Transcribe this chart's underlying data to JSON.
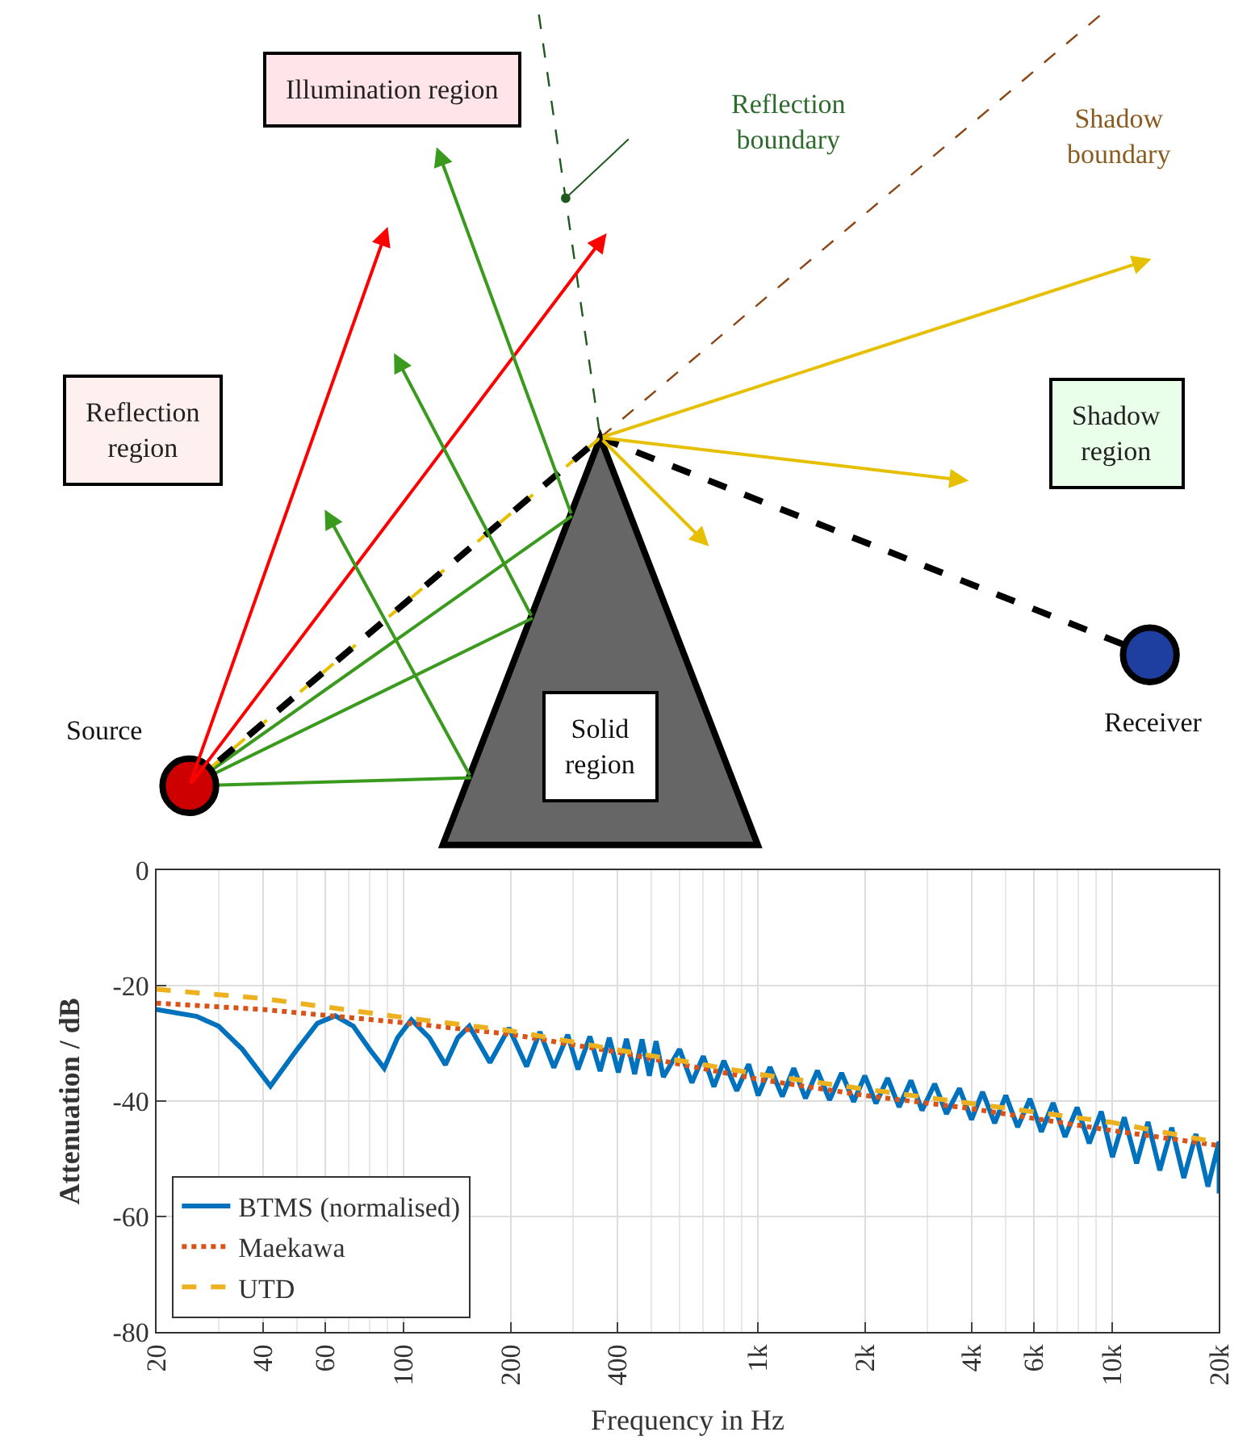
{
  "chart_data": [
    {
      "type": "other",
      "annotations": [
        "Illumination region",
        "Reflection\nboundary",
        "Shadow\nboundary",
        "Reflection\nregion",
        "Shadow\nregion",
        "Source",
        "Receiver",
        "Solid\nregion"
      ]
    },
    {
      "type": "line",
      "xlabel": "Frequency in Hz",
      "ylabel": "Attenuation / dB",
      "log": "x",
      "xlim": [
        20,
        20000
      ],
      "xticks": [
        20,
        40,
        60,
        100,
        200,
        400,
        {
          "value": 1000,
          "label": "1k"
        },
        {
          "value": 2000,
          "label": "2k"
        },
        {
          "value": 4000,
          "label": "4k"
        },
        {
          "value": 6000,
          "label": "6k"
        },
        {
          "value": 10000,
          "label": "10k"
        },
        {
          "value": 20000,
          "label": "20k"
        }
      ],
      "ylim": [
        -80,
        0
      ],
      "yticks": [
        -80,
        -60,
        -40,
        -20,
        0
      ],
      "grid": true,
      "legend": "bottom left",
      "marker": "none",
      "series": [
        {
          "name": "BTMS (normalised)",
          "color": "#0072bd",
          "line_style": "solid",
          "x": [
            20,
            26,
            30,
            35,
            42,
            50,
            57,
            64,
            72,
            80,
            88,
            96,
            105,
            118,
            131,
            142,
            153,
            175,
            198,
            222,
            242,
            265,
            290,
            310,
            335,
            358,
            380,
            403,
            425,
            448,
            470,
            493,
            515,
            540,
            600,
            650,
            700,
            750,
            800,
            870,
            940,
            1000,
            1080,
            1170,
            1260,
            1360,
            1470,
            1590,
            1720,
            1860,
            2000,
            2150,
            2320,
            2500,
            2700,
            2900,
            3150,
            3400,
            3700,
            4000,
            4300,
            4650,
            5000,
            5400,
            5850,
            6300,
            6800,
            7350,
            7950,
            8600,
            9300,
            10000,
            10800,
            11700,
            12600,
            13600,
            14700,
            15900,
            17200,
            18600,
            20000,
            20000
          ],
          "values": [
            -24.1,
            -25.3,
            -27,
            -31,
            -37.4,
            -31,
            -26.5,
            -25.2,
            -27,
            -31,
            -34.3,
            -29,
            -25.9,
            -29,
            -33.7,
            -29,
            -27,
            -33.3,
            -27.3,
            -34,
            -28,
            -34.2,
            -28.5,
            -34.5,
            -28.8,
            -34.8,
            -29,
            -35,
            -29.2,
            -35.3,
            -29.3,
            -35.6,
            -29.6,
            -35.8,
            -31,
            -36.8,
            -32.2,
            -37.5,
            -33,
            -38.2,
            -33.6,
            -39,
            -34.1,
            -39.2,
            -34.3,
            -39.5,
            -34.7,
            -39.8,
            -35.1,
            -40.1,
            -35.6,
            -40.4,
            -36,
            -41,
            -36.4,
            -41.6,
            -37,
            -42.2,
            -37.8,
            -43.2,
            -38.4,
            -43.8,
            -39,
            -44.5,
            -39.6,
            -45.3,
            -40.3,
            -46.2,
            -41.1,
            -47.3,
            -41.8,
            -49.7,
            -42.8,
            -50.8,
            -43.6,
            -52,
            -44.6,
            -53.3,
            -45.7,
            -54.8,
            -47,
            -56
          ]
        },
        {
          "name": "Maekawa",
          "color": "#d95319",
          "line_style": "dotted",
          "x": [
            20,
            40,
            100,
            200,
            400,
            1000,
            2000,
            4000,
            10000,
            20000
          ],
          "values": [
            -23,
            -24.1,
            -26.4,
            -28.4,
            -31.5,
            -36.2,
            -39,
            -41.3,
            -45.1,
            -47.7
          ]
        },
        {
          "name": "UTD",
          "color": "#edb120",
          "line_style": "dashed",
          "x": [
            20,
            40,
            100,
            200,
            400,
            1000,
            2000,
            4000,
            10000,
            20000
          ],
          "values": [
            -20.6,
            -22.2,
            -25.5,
            -27.8,
            -31.1,
            -35.3,
            -37.9,
            -40.4,
            -43.7,
            -47.2
          ]
        }
      ]
    }
  ]
}
